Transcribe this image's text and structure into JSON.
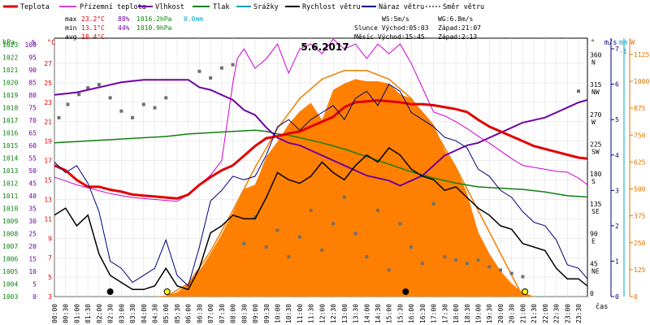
{
  "chart_data": {
    "type": "line",
    "title": "5.6.2017",
    "xlabel": "čas",
    "legend": [
      {
        "label": "Teplota",
        "color": "#e00000"
      },
      {
        "label": "Přízemní teplota",
        "color": "#d000d0"
      },
      {
        "label": "Vlhkost",
        "color": "#7000a0"
      },
      {
        "label": "Tlak",
        "color": "#108010"
      },
      {
        "label": "Srážky",
        "color": "#00a0c0"
      },
      {
        "label": "Rychlost větru",
        "color": "#000000"
      },
      {
        "label": "Náraz větru",
        "color": "#000080"
      },
      {
        "label": "Směr větru",
        "color": "#707070"
      }
    ],
    "stats": {
      "max": {
        "label": "max",
        "temp": "23.2°C",
        "hum": "88%",
        "press": "1016.2hPa",
        "rain": "0.0mm"
      },
      "min": {
        "label": "min",
        "temp": "13.1°C",
        "hum": "44%",
        "press": "1010.9hPa"
      },
      "avg": {
        "label": "avg",
        "temp": "18.4°C"
      }
    },
    "info": {
      "ws": "WS:5m/s",
      "wg": "WG:6.8m/s",
      "sun": "Slunce Východ:05:03",
      "sun_set": "Západ:21:07",
      "moon": "Měsíc Východ:15:45",
      "moon_set": "Západ:2:13"
    },
    "axes": {
      "hpa": {
        "label": "hPa",
        "ticks": [
          "1003",
          "1004",
          "1005",
          "1006",
          "1007",
          "1008",
          "1009",
          "1010",
          "1011",
          "1012",
          "1013",
          "1014",
          "1015",
          "1016",
          "1017",
          "1018",
          "1019",
          "1020",
          "1021",
          "1022",
          "1023"
        ],
        "range": [
          1003,
          1023.5
        ]
      },
      "pct": {
        "label": "%",
        "ticks": [
          "0",
          "5",
          "10",
          "15",
          "20",
          "25",
          "30",
          "35",
          "40",
          "45",
          "50",
          "55",
          "60",
          "65",
          "70",
          "75",
          "80",
          "85",
          "90",
          "95",
          "100"
        ],
        "range": [
          0,
          102.5
        ]
      },
      "temp": {
        "label": "°C",
        "ticks": [
          "3",
          "5",
          "7",
          "9",
          "11",
          "13",
          "15",
          "17",
          "19",
          "21",
          "23",
          "25",
          "27"
        ],
        "range": [
          3,
          29.6
        ]
      },
      "dir": {
        "label": "°",
        "ticks": [
          "0",
          "45 NE",
          "90 E",
          "135 SE",
          "180 S",
          "225 SW",
          "270 W",
          "315 NW",
          "360 N"
        ],
        "range": [
          0,
          390
        ]
      },
      "wind": {
        "label": "m/s",
        "ticks": [
          "0",
          "1",
          "2",
          "3",
          "4",
          "5",
          "6",
          "7"
        ],
        "range": [
          0,
          7.3
        ]
      },
      "rain": {
        "label": "mm",
        "ticks": [
          "-1"
        ]
      },
      "solar": {
        "label": "W",
        "ticks": [
          "0",
          "125",
          "250",
          "375",
          "500",
          "625",
          "750",
          "875",
          "1000",
          "1125"
        ],
        "range": [
          0,
          1200
        ]
      }
    },
    "x_ticks": [
      "00:00",
      "00:30",
      "01:00",
      "01:30",
      "02:00",
      "02:30",
      "03:00",
      "03:30",
      "04:00",
      "04:30",
      "05:00",
      "05:30",
      "06:00",
      "06:30",
      "07:00",
      "07:30",
      "08:00",
      "08:30",
      "09:00",
      "09:30",
      "10:00",
      "10:30",
      "11:00",
      "11:30",
      "12:00",
      "12:30",
      "13:00",
      "13:30",
      "14:00",
      "14:30",
      "15:00",
      "15:30",
      "16:00",
      "16:30",
      "17:00",
      "17:30",
      "18:00",
      "18:30",
      "19:00",
      "19:30",
      "20:00",
      "20:30",
      "21:00",
      "21:30",
      "22:00",
      "22:30",
      "23:00",
      "23:30"
    ],
    "x_hours": [
      0,
      23.9
    ],
    "series": [
      {
        "name": "Teplota",
        "unit": "°C",
        "x": [
          0,
          0.5,
          1,
          1.5,
          2,
          2.5,
          3,
          3.5,
          4,
          4.5,
          5,
          5.5,
          6,
          6.5,
          7,
          7.5,
          8,
          8.5,
          9,
          9.5,
          10,
          10.5,
          11,
          11.5,
          12,
          12.5,
          13,
          13.5,
          14,
          14.5,
          15,
          15.5,
          16,
          16.5,
          17,
          17.5,
          18,
          18.5,
          19,
          19.5,
          20,
          20.5,
          21,
          21.5,
          22,
          22.5,
          23,
          23.5,
          23.9
        ],
        "y": [
          16.5,
          16,
          15,
          14.3,
          14.3,
          14,
          13.8,
          13.5,
          13.4,
          13.3,
          13.2,
          13.1,
          13.5,
          14.5,
          15.3,
          16,
          16.5,
          17.5,
          18.5,
          19.3,
          19.5,
          19.8,
          20,
          20.5,
          21,
          21.5,
          22.5,
          23,
          23.1,
          23.2,
          23.1,
          23,
          22.8,
          22.8,
          22.7,
          22.5,
          22.3,
          22,
          21.2,
          20.5,
          20,
          19.5,
          19,
          18.5,
          18.2,
          17.9,
          17.6,
          17.3,
          17.2
        ]
      },
      {
        "name": "Přízemní teplota",
        "unit": "°C",
        "x": [
          0,
          0.5,
          1,
          1.5,
          2,
          2.5,
          3,
          3.5,
          4,
          4.5,
          5,
          5.5,
          6,
          6.5,
          7,
          7.5,
          8,
          8.2,
          8.5,
          9,
          9.5,
          10,
          10.5,
          11,
          11.5,
          12,
          12.5,
          13,
          13.5,
          14,
          14.5,
          15,
          15.5,
          16,
          16.5,
          17,
          17.5,
          18,
          18.5,
          19,
          19.5,
          20,
          20.5,
          21,
          21.5,
          22,
          22.5,
          23,
          23.5,
          23.9
        ],
        "y": [
          15.3,
          14.9,
          14.5,
          14.2,
          13.9,
          13.6,
          13.4,
          13.2,
          13.1,
          13,
          12.9,
          12.8,
          13.5,
          14.5,
          15.5,
          17,
          25,
          27.5,
          28.5,
          26.5,
          27.5,
          29,
          26,
          28.5,
          29,
          28,
          29.5,
          28.5,
          29,
          27.5,
          29,
          28,
          29,
          27,
          24.5,
          22,
          21.6,
          21,
          20.3,
          19.5,
          18.8,
          18,
          17.2,
          16.5,
          16.3,
          16.1,
          15.9,
          15.8,
          15.2,
          14.5
        ]
      },
      {
        "name": "Vlhkost",
        "unit": "%",
        "x": [
          0,
          1,
          2,
          3,
          4,
          5,
          6,
          6.5,
          7,
          7.5,
          8,
          8.5,
          9,
          9.5,
          10,
          10.5,
          11,
          11.5,
          12,
          12.5,
          13,
          13.5,
          14,
          14.5,
          15,
          15.5,
          16,
          16.5,
          17,
          17.5,
          18,
          18.5,
          19,
          19.5,
          20,
          20.5,
          21,
          21.5,
          22,
          22.5,
          23,
          23.5,
          23.9
        ],
        "y": [
          80,
          81,
          83,
          85,
          86,
          86,
          86,
          83,
          82,
          80,
          78,
          74,
          72,
          67,
          63,
          61,
          60,
          58,
          56,
          54,
          52,
          50,
          48,
          47,
          46,
          44,
          46,
          48,
          52,
          56,
          58,
          60,
          61,
          63,
          65,
          67,
          69,
          70,
          71,
          73,
          75,
          77,
          78
        ]
      },
      {
        "name": "Tlak",
        "unit": "hPa",
        "x": [
          0,
          1,
          2,
          3,
          4,
          5,
          6,
          7,
          8,
          9,
          9.5,
          10,
          10.5,
          11,
          12,
          13,
          14,
          15,
          16,
          17,
          18,
          19,
          20,
          21,
          22,
          23,
          23.9
        ],
        "y": [
          1015.2,
          1015.3,
          1015.4,
          1015.5,
          1015.6,
          1015.7,
          1015.9,
          1016.0,
          1016.1,
          1016.2,
          1016.1,
          1015.9,
          1015.8,
          1015.6,
          1015.2,
          1014.7,
          1014.1,
          1013.5,
          1012.9,
          1012.4,
          1012.0,
          1011.7,
          1011.6,
          1011.5,
          1011.3,
          1011.0,
          1010.9
        ]
      },
      {
        "name": "Rychlost větru",
        "unit": "m/s",
        "x": [
          0,
          0.5,
          1,
          1.5,
          2,
          2.5,
          3,
          3.5,
          4,
          4.5,
          5,
          5.5,
          6,
          6.5,
          7,
          7.5,
          8,
          8.5,
          9,
          9.5,
          10,
          10.5,
          11,
          11.5,
          12,
          12.5,
          13,
          13.5,
          14,
          14.5,
          15,
          15.5,
          16,
          16.5,
          17,
          17.5,
          18,
          18.5,
          19,
          19.5,
          20,
          20.5,
          21,
          21.5,
          22,
          22.5,
          23,
          23.5,
          23.9
        ],
        "y": [
          2.3,
          2.5,
          2,
          2.3,
          1.2,
          0.6,
          0.4,
          0.2,
          0.2,
          0.3,
          0.8,
          0.3,
          0.2,
          0.8,
          1.8,
          2,
          2.3,
          2.2,
          2.2,
          2.8,
          3.5,
          3.3,
          3.2,
          3.4,
          3.8,
          3.5,
          3.3,
          3.7,
          4,
          3.8,
          4.2,
          4,
          3.6,
          3.4,
          3.3,
          3,
          3.1,
          2.8,
          2.5,
          2.3,
          2,
          1.9,
          1.5,
          1.4,
          1.3,
          0.8,
          0.5,
          0.5,
          0.3
        ]
      },
      {
        "name": "Náraz větru",
        "unit": "m/s",
        "x": [
          0,
          0.5,
          1,
          1.5,
          2,
          2.5,
          3,
          3.5,
          4,
          4.5,
          5,
          5.5,
          6,
          6.5,
          7,
          7.5,
          8,
          8.5,
          9,
          9.5,
          10,
          10.5,
          11,
          11.5,
          12,
          12.5,
          13,
          13.5,
          14,
          14.5,
          15,
          15.5,
          16,
          16.5,
          17,
          17.5,
          18,
          18.5,
          19,
          19.5,
          20,
          20.5,
          21,
          21.5,
          22,
          22.5,
          23,
          23.5,
          23.9
        ],
        "y": [
          3.8,
          3.5,
          3.7,
          3.2,
          2.4,
          1,
          0.8,
          0.4,
          0.6,
          0.8,
          1.6,
          0.6,
          0.3,
          1.4,
          2.7,
          3,
          3.4,
          3.3,
          3.4,
          4,
          4.8,
          5,
          4.7,
          5,
          5.2,
          5.4,
          5,
          5.6,
          5.8,
          5.4,
          6,
          5.8,
          5.2,
          5,
          4.8,
          4.5,
          4.4,
          4.2,
          3.6,
          3.4,
          3,
          2.8,
          2.4,
          2.1,
          2,
          1.6,
          0.9,
          0.8,
          0.5
        ]
      },
      {
        "name": "Sluneční záření",
        "unit": "W",
        "x": [
          4.5,
          5,
          5.5,
          6,
          6.5,
          7,
          7.5,
          8,
          8.5,
          9,
          9.5,
          10,
          10.5,
          11,
          11.5,
          12,
          12.5,
          13,
          13.5,
          14,
          14.5,
          15,
          15.5,
          16,
          16.5,
          17,
          17.5,
          18,
          18.5,
          19,
          19.5,
          20,
          20.5,
          21,
          21.5
        ],
        "y": [
          0,
          5,
          20,
          60,
          120,
          200,
          290,
          390,
          500,
          520,
          650,
          720,
          800,
          860,
          900,
          820,
          960,
          990,
          1010,
          1000,
          1000,
          990,
          940,
          920,
          860,
          800,
          680,
          600,
          480,
          300,
          200,
          120,
          60,
          20,
          0
        ]
      },
      {
        "name": "Sluneční záření max",
        "unit": "W",
        "x": [
          5,
          6,
          7,
          8,
          9,
          10,
          11,
          12,
          13,
          14,
          15,
          16,
          17,
          18,
          19,
          20,
          21
        ],
        "y": [
          0,
          60,
          210,
          400,
          600,
          780,
          920,
          1010,
          1050,
          1050,
          1010,
          920,
          780,
          600,
          400,
          200,
          0
        ]
      }
    ],
    "wind_dir": {
      "name": "Směr větru",
      "unit": "°",
      "x": [
        0.2,
        0.6,
        1.1,
        1.5,
        2,
        2.5,
        3,
        3.5,
        4,
        4.5,
        5,
        6.5,
        7,
        7.5,
        8,
        8.5,
        9,
        9.5,
        10,
        10.5,
        11,
        11.5,
        12,
        12.5,
        13,
        13.5,
        14,
        14.5,
        15,
        15.5,
        16,
        16.5,
        17,
        17.5,
        18,
        18.5,
        19,
        19.5,
        20,
        20.5,
        21,
        23.5
      ],
      "y": [
        270,
        290,
        305,
        315,
        320,
        300,
        280,
        270,
        290,
        285,
        300,
        340,
        330,
        345,
        350,
        80,
        120,
        75,
        100,
        60,
        90,
        130,
        70,
        110,
        150,
        95,
        60,
        130,
        40,
        110,
        75,
        50,
        140,
        60,
        55,
        50,
        55,
        45,
        40,
        35,
        30,
        310
      ]
    },
    "markers": [
      {
        "x": 2.5,
        "type": "dark"
      },
      {
        "x": 5.05,
        "type": "sun"
      },
      {
        "x": 15.75,
        "type": "moon"
      },
      {
        "x": 21.1,
        "type": "sun"
      }
    ]
  }
}
